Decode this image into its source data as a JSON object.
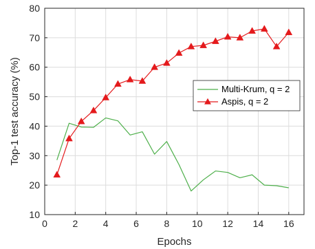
{
  "chart_data": {
    "type": "line",
    "title": "",
    "xlabel": "Epochs",
    "ylabel": "Top-1 test accuracy (%)",
    "xlim": [
      0,
      17
    ],
    "ylim": [
      10,
      80
    ],
    "xticks": [
      0,
      2,
      4,
      6,
      8,
      10,
      12,
      14,
      16
    ],
    "yticks": [
      10,
      20,
      30,
      40,
      50,
      60,
      70,
      80
    ],
    "grid": true,
    "legend_position": "center-right",
    "series": [
      {
        "name": "Multi-Krum, q = 2",
        "color": "#4daf4a",
        "marker": "none",
        "x": [
          0.8,
          1.6,
          2.4,
          3.2,
          4.0,
          4.8,
          5.6,
          6.4,
          7.2,
          8.0,
          8.8,
          9.6,
          10.4,
          11.2,
          12.0,
          12.8,
          13.6,
          14.4,
          15.2,
          16.0
        ],
        "y": [
          28.5,
          41.0,
          39.7,
          39.6,
          42.8,
          41.8,
          37.0,
          38.1,
          30.5,
          34.8,
          27.0,
          18.0,
          21.8,
          24.8,
          24.3,
          22.5,
          23.5,
          20.0,
          19.8,
          19.1
        ]
      },
      {
        "name": "Aspis, q = 2",
        "color": "#e41a1c",
        "marker": "triangle",
        "x": [
          0.8,
          1.6,
          2.4,
          3.2,
          4.0,
          4.8,
          5.6,
          6.4,
          7.2,
          8.0,
          8.8,
          9.6,
          10.4,
          11.2,
          12.0,
          12.8,
          13.6,
          14.4,
          15.2,
          16.0
        ],
        "y": [
          23.5,
          35.8,
          41.6,
          45.3,
          49.7,
          54.3,
          55.8,
          55.3,
          60.0,
          61.4,
          64.8,
          67.0,
          67.4,
          68.8,
          70.3,
          70.0,
          72.3,
          73.0,
          67.0,
          71.8
        ]
      }
    ]
  }
}
